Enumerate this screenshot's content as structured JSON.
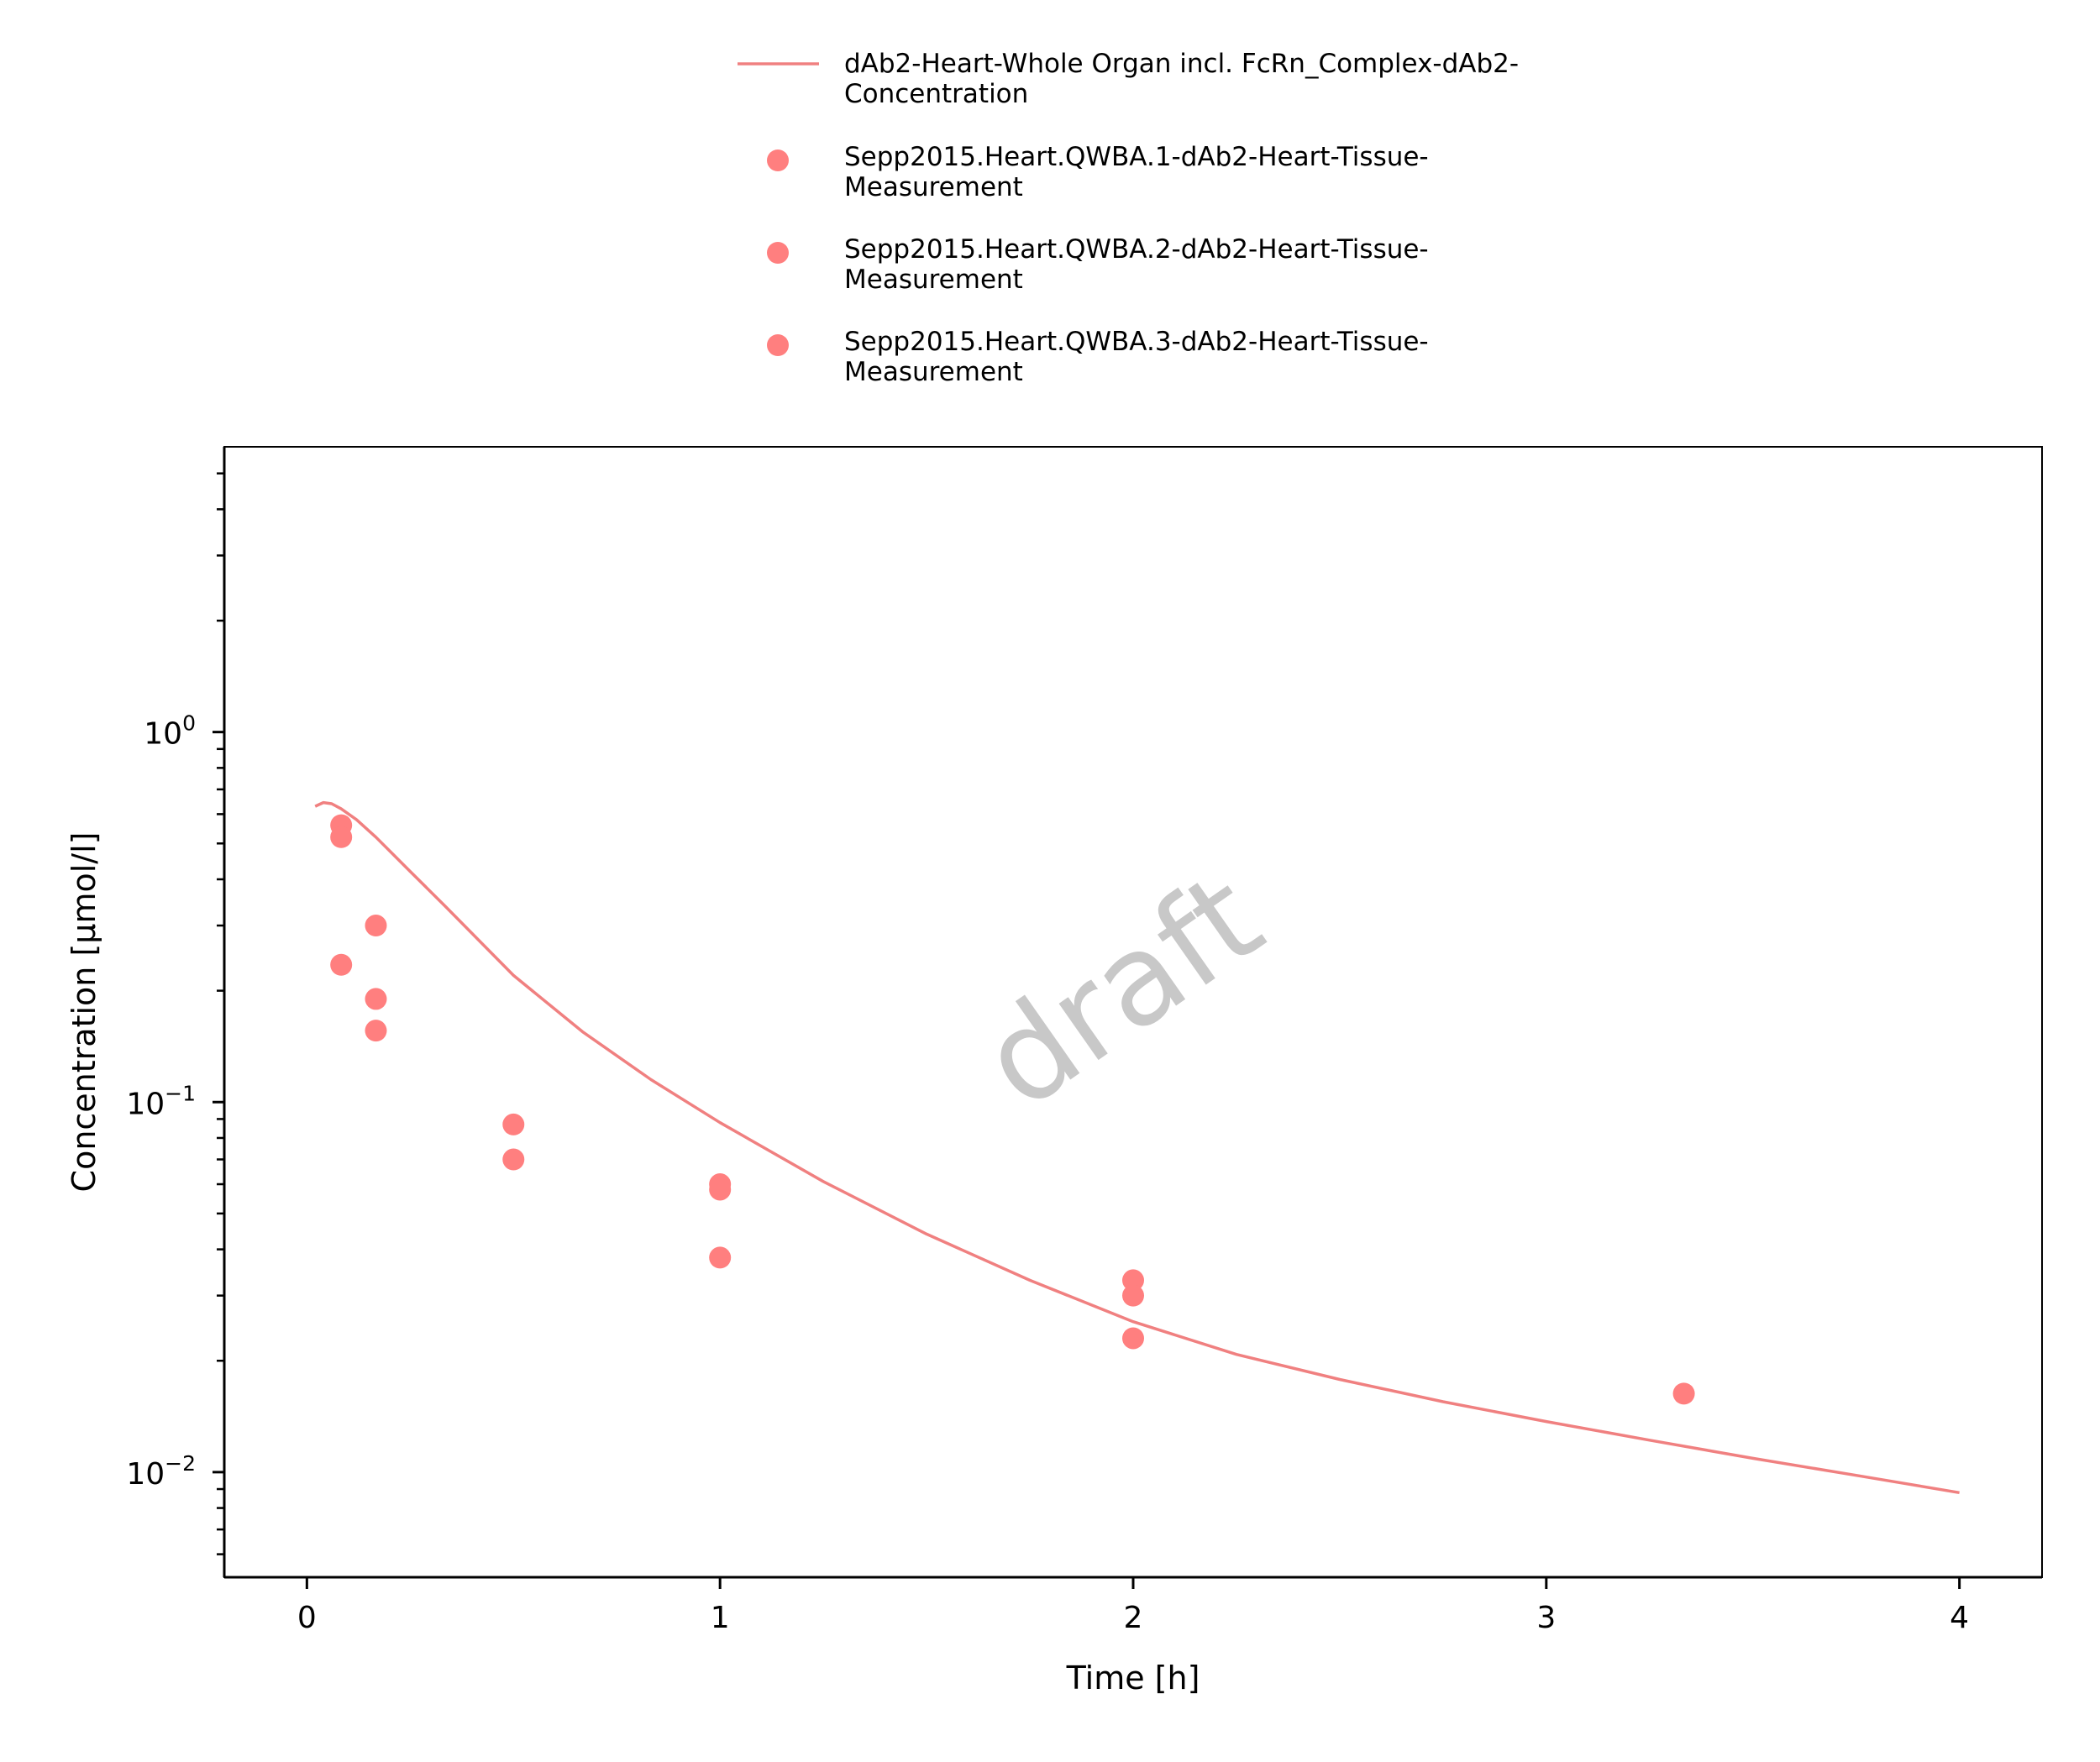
{
  "chart_data": {
    "type": "scatter",
    "title": "",
    "xlabel": "Time [h]",
    "ylabel": "Concentration [µmol/l]",
    "xlim": [
      -0.2,
      4.2
    ],
    "ylim": [
      0.0052,
      5.9
    ],
    "yscale": "log",
    "grid": false,
    "legend_position": "top-center",
    "x_ticks": [
      {
        "value": 0,
        "label": "0"
      },
      {
        "value": 1,
        "label": "1"
      },
      {
        "value": 2,
        "label": "2"
      },
      {
        "value": 3,
        "label": "3"
      },
      {
        "value": 4,
        "label": "4"
      }
    ],
    "y_ticks": [
      {
        "value": 0.01,
        "base": "10",
        "exponent": "−2"
      },
      {
        "value": 0.1,
        "base": "10",
        "exponent": "−1"
      },
      {
        "value": 1,
        "base": "10",
        "exponent": "0"
      }
    ],
    "watermark": "draft",
    "series": [
      {
        "name": "dAb2-Heart-Whole Organ incl. FcRn_Complex-dAb2-Concentration",
        "legend_lines": [
          "dAb2-Heart-Whole Organ incl. FcRn_Complex-dAb2-",
          "Concentration"
        ],
        "kind": "line",
        "color": "#f08080",
        "x": [
          0.02,
          0.04,
          0.06,
          0.083,
          0.12,
          0.167,
          0.25,
          0.333,
          0.5,
          0.667,
          0.833,
          1.0,
          1.25,
          1.5,
          1.75,
          2.0,
          2.25,
          2.5,
          2.75,
          3.0,
          3.25,
          3.5,
          3.75,
          4.0
        ],
        "y": [
          0.63,
          0.645,
          0.64,
          0.62,
          0.58,
          0.52,
          0.42,
          0.34,
          0.22,
          0.155,
          0.115,
          0.088,
          0.061,
          0.044,
          0.033,
          0.0255,
          0.0208,
          0.0178,
          0.0155,
          0.0137,
          0.0122,
          0.0109,
          0.0098,
          0.0088
        ]
      },
      {
        "name": "Sepp2015.Heart.QWBA.1-dAb2-Heart-Tissue-Measurement",
        "legend_lines": [
          "Sepp2015.Heart.QWBA.1-dAb2-Heart-Tissue-",
          "Measurement"
        ],
        "kind": "scatter",
        "color": "#ff7f7f",
        "x": [
          0.083,
          0.167,
          0.5,
          1.0,
          2.0
        ],
        "y": [
          0.56,
          0.3,
          0.087,
          0.06,
          0.033
        ]
      },
      {
        "name": "Sepp2015.Heart.QWBA.2-dAb2-Heart-Tissue-Measurement",
        "legend_lines": [
          "Sepp2015.Heart.QWBA.2-dAb2-Heart-Tissue-",
          "Measurement"
        ],
        "kind": "scatter",
        "color": "#ff7f7f",
        "x": [
          0.083,
          0.167,
          0.5,
          1.0,
          2.0,
          3.333
        ],
        "y": [
          0.52,
          0.19,
          0.07,
          0.058,
          0.03,
          0.0163
        ]
      },
      {
        "name": "Sepp2015.Heart.QWBA.3-dAb2-Heart-Tissue-Measurement",
        "legend_lines": [
          "Sepp2015.Heart.QWBA.3-dAb2-Heart-Tissue-",
          "Measurement"
        ],
        "kind": "scatter",
        "color": "#ff7f7f",
        "x": [
          0.083,
          0.167,
          1.0,
          2.0
        ],
        "y": [
          0.235,
          0.156,
          0.038,
          0.023
        ]
      }
    ]
  }
}
